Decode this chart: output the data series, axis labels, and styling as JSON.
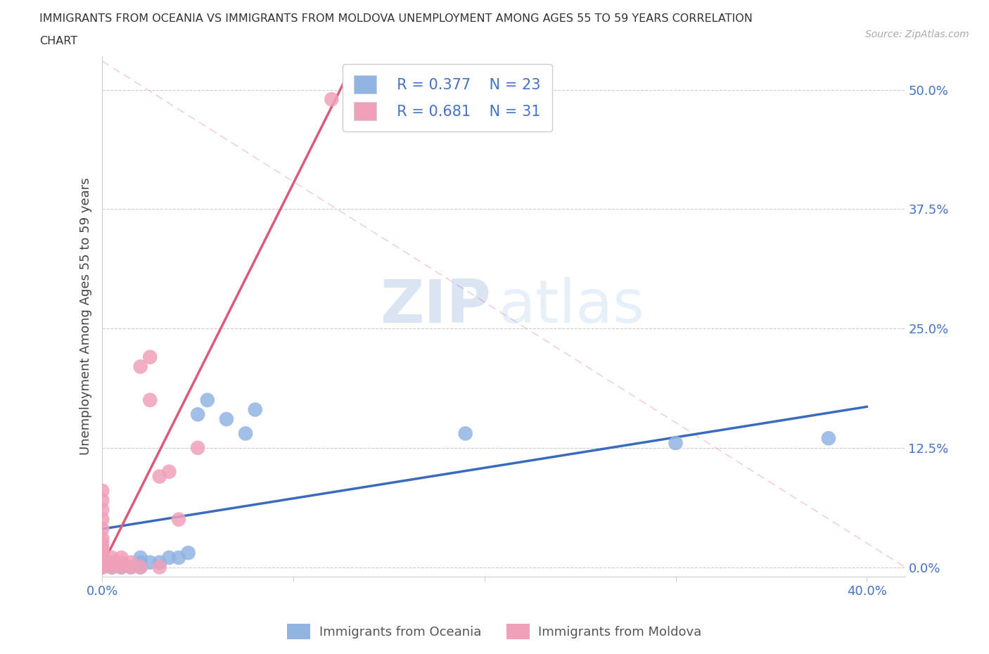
{
  "title_line1": "IMMIGRANTS FROM OCEANIA VS IMMIGRANTS FROM MOLDOVA UNEMPLOYMENT AMONG AGES 55 TO 59 YEARS CORRELATION",
  "title_line2": "CHART",
  "source": "Source: ZipAtlas.com",
  "ylabel": "Unemployment Among Ages 55 to 59 years",
  "xlim": [
    0.0,
    0.42
  ],
  "ylim": [
    -0.01,
    0.535
  ],
  "xticks": [
    0.0,
    0.4
  ],
  "xticklabels": [
    "0.0%",
    "40.0%"
  ],
  "ytick_positions": [
    0.0,
    0.125,
    0.25,
    0.375,
    0.5
  ],
  "yticklabels": [
    "0.0%",
    "12.5%",
    "25.0%",
    "37.5%",
    "50.0%"
  ],
  "oceania_color": "#92b4e3",
  "moldova_color": "#f0a0b8",
  "oceania_line_color": "#3a6bbf",
  "moldova_line_color": "#e05878",
  "ref_line_color": "#f0b0c0",
  "background_color": "#ffffff",
  "watermark_zip": "ZIP",
  "watermark_atlas": "atlas",
  "legend_R_oceania": "R = 0.377",
  "legend_N_oceania": "N = 23",
  "legend_R_moldova": "R = 0.681",
  "legend_N_moldova": "N = 31",
  "oceania_points": [
    [
      0.0,
      0.0
    ],
    [
      0.0,
      0.0
    ],
    [
      0.005,
      0.0
    ],
    [
      0.005,
      0.0
    ],
    [
      0.01,
      0.0
    ],
    [
      0.01,
      0.0
    ],
    [
      0.015,
      0.0
    ],
    [
      0.02,
      0.0
    ],
    [
      0.02,
      0.005
    ],
    [
      0.02,
      0.01
    ],
    [
      0.025,
      0.005
    ],
    [
      0.03,
      0.005
    ],
    [
      0.035,
      0.01
    ],
    [
      0.04,
      0.01
    ],
    [
      0.045,
      0.015
    ],
    [
      0.05,
      0.16
    ],
    [
      0.055,
      0.175
    ],
    [
      0.065,
      0.155
    ],
    [
      0.075,
      0.14
    ],
    [
      0.08,
      0.165
    ],
    [
      0.19,
      0.14
    ],
    [
      0.3,
      0.13
    ],
    [
      0.38,
      0.135
    ]
  ],
  "moldova_points": [
    [
      0.0,
      0.0
    ],
    [
      0.0,
      0.005
    ],
    [
      0.0,
      0.01
    ],
    [
      0.0,
      0.015
    ],
    [
      0.0,
      0.02
    ],
    [
      0.0,
      0.025
    ],
    [
      0.0,
      0.03
    ],
    [
      0.0,
      0.04
    ],
    [
      0.0,
      0.05
    ],
    [
      0.0,
      0.06
    ],
    [
      0.0,
      0.07
    ],
    [
      0.0,
      0.08
    ],
    [
      0.005,
      0.0
    ],
    [
      0.005,
      0.005
    ],
    [
      0.005,
      0.01
    ],
    [
      0.01,
      0.0
    ],
    [
      0.01,
      0.005
    ],
    [
      0.01,
      0.01
    ],
    [
      0.015,
      0.0
    ],
    [
      0.015,
      0.005
    ],
    [
      0.02,
      0.0
    ],
    [
      0.02,
      0.21
    ],
    [
      0.025,
      0.22
    ],
    [
      0.025,
      0.175
    ],
    [
      0.03,
      0.0
    ],
    [
      0.03,
      0.095
    ],
    [
      0.035,
      0.1
    ],
    [
      0.04,
      0.05
    ],
    [
      0.05,
      0.125
    ],
    [
      0.12,
      0.49
    ],
    [
      0.0,
      0.0
    ]
  ]
}
